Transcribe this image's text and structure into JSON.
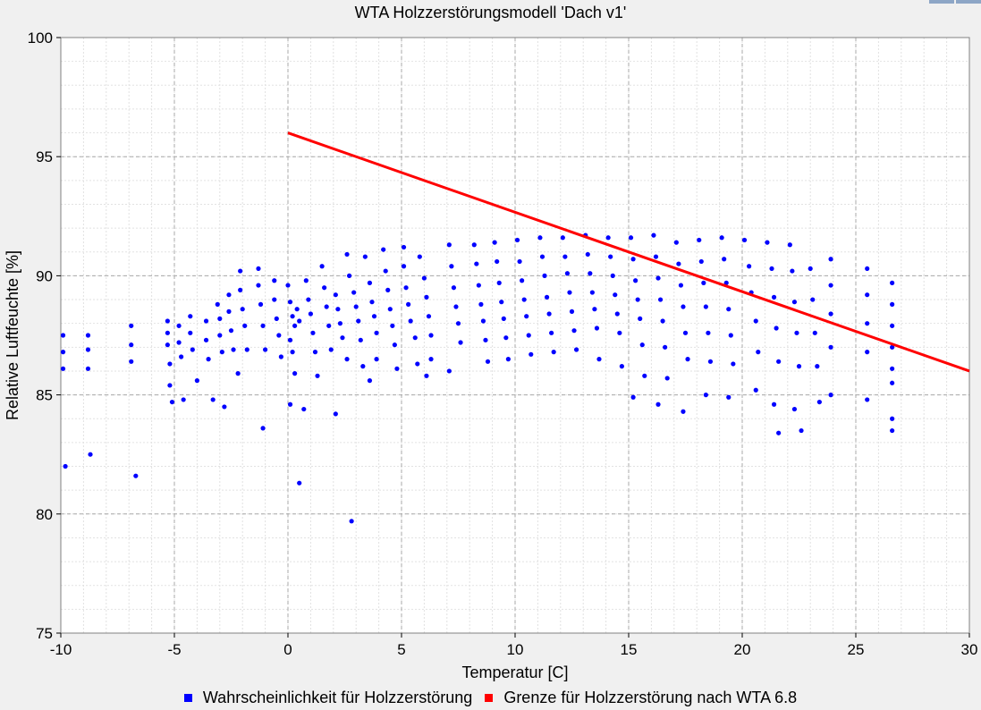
{
  "chart_data": {
    "type": "scatter",
    "title": "WTA Holzzerstörungsmodell 'Dach v1'",
    "xlabel": "Temperatur [C]",
    "ylabel": "Relative Luftfeuchte [%]",
    "xlim": [
      -10,
      30
    ],
    "ylim": [
      75,
      100
    ],
    "xticks": [
      -10,
      -5,
      0,
      5,
      10,
      15,
      20,
      25,
      30
    ],
    "yticks": [
      75,
      80,
      85,
      90,
      95,
      100
    ],
    "grid": true,
    "legend_position": "bottom",
    "series": [
      {
        "name": "Wahrscheinlichkeit für Holzzerstörung",
        "type": "scatter",
        "color": "#0000ff",
        "points": [
          [
            -9.9,
            87.5
          ],
          [
            -9.9,
            86.8
          ],
          [
            -9.9,
            86.1
          ],
          [
            -9.8,
            82.0
          ],
          [
            -8.8,
            87.5
          ],
          [
            -8.8,
            86.9
          ],
          [
            -8.8,
            86.1
          ],
          [
            -8.7,
            82.5
          ],
          [
            -6.9,
            87.9
          ],
          [
            -6.9,
            87.1
          ],
          [
            -6.9,
            86.4
          ],
          [
            -6.7,
            81.6
          ],
          [
            -5.3,
            88.1
          ],
          [
            -5.3,
            87.6
          ],
          [
            -5.3,
            87.1
          ],
          [
            -5.2,
            86.3
          ],
          [
            -5.2,
            85.4
          ],
          [
            -5.1,
            84.7
          ],
          [
            -4.8,
            87.9
          ],
          [
            -4.8,
            87.2
          ],
          [
            -4.7,
            86.6
          ],
          [
            -4.6,
            84.8
          ],
          [
            -4.3,
            88.3
          ],
          [
            -4.3,
            87.6
          ],
          [
            -4.2,
            86.9
          ],
          [
            -4.0,
            85.6
          ],
          [
            -3.6,
            88.1
          ],
          [
            -3.6,
            87.3
          ],
          [
            -3.5,
            86.5
          ],
          [
            -3.3,
            84.8
          ],
          [
            -3.1,
            88.8
          ],
          [
            -3.0,
            88.2
          ],
          [
            -3.0,
            87.5
          ],
          [
            -2.9,
            86.8
          ],
          [
            -2.8,
            84.5
          ],
          [
            -2.6,
            89.2
          ],
          [
            -2.6,
            88.5
          ],
          [
            -2.5,
            87.7
          ],
          [
            -2.4,
            86.9
          ],
          [
            -2.2,
            85.9
          ],
          [
            -2.1,
            90.2
          ],
          [
            -2.1,
            89.4
          ],
          [
            -2.0,
            88.6
          ],
          [
            -1.9,
            87.9
          ],
          [
            -1.8,
            86.9
          ],
          [
            -1.3,
            90.3
          ],
          [
            -1.3,
            89.6
          ],
          [
            -1.2,
            88.8
          ],
          [
            -1.1,
            87.9
          ],
          [
            -1.0,
            86.9
          ],
          [
            -1.1,
            83.6
          ],
          [
            -0.6,
            89.8
          ],
          [
            -0.6,
            89.0
          ],
          [
            -0.5,
            88.2
          ],
          [
            -0.4,
            87.5
          ],
          [
            -0.3,
            86.6
          ],
          [
            0.0,
            89.6
          ],
          [
            0.1,
            88.9
          ],
          [
            0.2,
            88.3
          ],
          [
            0.3,
            87.9
          ],
          [
            0.4,
            88.6
          ],
          [
            0.5,
            88.1
          ],
          [
            0.1,
            87.3
          ],
          [
            0.2,
            86.8
          ],
          [
            0.3,
            85.9
          ],
          [
            0.1,
            84.6
          ],
          [
            0.5,
            81.3
          ],
          [
            0.7,
            84.4
          ],
          [
            0.8,
            89.8
          ],
          [
            0.9,
            89.0
          ],
          [
            1.0,
            88.4
          ],
          [
            1.1,
            87.6
          ],
          [
            1.2,
            86.8
          ],
          [
            1.3,
            85.8
          ],
          [
            1.5,
            90.4
          ],
          [
            1.6,
            89.5
          ],
          [
            1.7,
            88.7
          ],
          [
            1.8,
            87.9
          ],
          [
            1.9,
            86.9
          ],
          [
            2.1,
            84.2
          ],
          [
            2.1,
            89.2
          ],
          [
            2.2,
            88.6
          ],
          [
            2.3,
            88.0
          ],
          [
            2.4,
            87.4
          ],
          [
            2.6,
            86.5
          ],
          [
            2.8,
            79.7
          ],
          [
            2.6,
            90.9
          ],
          [
            2.7,
            90.0
          ],
          [
            2.9,
            89.3
          ],
          [
            3.0,
            88.7
          ],
          [
            3.1,
            88.1
          ],
          [
            3.2,
            87.3
          ],
          [
            3.3,
            86.2
          ],
          [
            3.4,
            90.8
          ],
          [
            3.6,
            89.7
          ],
          [
            3.7,
            88.9
          ],
          [
            3.8,
            88.3
          ],
          [
            3.9,
            87.6
          ],
          [
            3.9,
            86.5
          ],
          [
            3.6,
            85.6
          ],
          [
            4.2,
            91.1
          ],
          [
            4.3,
            90.2
          ],
          [
            4.4,
            89.4
          ],
          [
            4.5,
            88.6
          ],
          [
            4.6,
            87.9
          ],
          [
            4.7,
            87.1
          ],
          [
            4.8,
            86.1
          ],
          [
            5.1,
            91.2
          ],
          [
            5.1,
            90.4
          ],
          [
            5.2,
            89.5
          ],
          [
            5.3,
            88.8
          ],
          [
            5.4,
            88.1
          ],
          [
            5.6,
            87.4
          ],
          [
            5.7,
            86.3
          ],
          [
            5.8,
            90.8
          ],
          [
            6.0,
            89.9
          ],
          [
            6.1,
            89.1
          ],
          [
            6.2,
            88.3
          ],
          [
            6.3,
            87.5
          ],
          [
            6.3,
            86.5
          ],
          [
            6.1,
            85.8
          ],
          [
            7.1,
            91.3
          ],
          [
            7.2,
            90.4
          ],
          [
            7.3,
            89.5
          ],
          [
            7.4,
            88.7
          ],
          [
            7.5,
            88.0
          ],
          [
            7.6,
            87.2
          ],
          [
            7.1,
            86.0
          ],
          [
            8.2,
            91.3
          ],
          [
            8.3,
            90.5
          ],
          [
            8.4,
            89.6
          ],
          [
            8.5,
            88.8
          ],
          [
            8.6,
            88.1
          ],
          [
            8.7,
            87.3
          ],
          [
            8.8,
            86.4
          ],
          [
            9.1,
            91.4
          ],
          [
            9.2,
            90.6
          ],
          [
            9.3,
            89.7
          ],
          [
            9.4,
            88.9
          ],
          [
            9.5,
            88.2
          ],
          [
            9.6,
            87.4
          ],
          [
            9.7,
            86.5
          ],
          [
            10.1,
            91.5
          ],
          [
            10.2,
            90.6
          ],
          [
            10.3,
            89.8
          ],
          [
            10.4,
            89.0
          ],
          [
            10.5,
            88.3
          ],
          [
            10.6,
            87.5
          ],
          [
            10.7,
            86.7
          ],
          [
            11.1,
            91.6
          ],
          [
            11.2,
            90.8
          ],
          [
            11.3,
            90.0
          ],
          [
            11.4,
            89.1
          ],
          [
            11.5,
            88.4
          ],
          [
            11.6,
            87.6
          ],
          [
            11.7,
            86.8
          ],
          [
            12.1,
            91.6
          ],
          [
            12.2,
            90.8
          ],
          [
            12.3,
            90.1
          ],
          [
            12.4,
            89.3
          ],
          [
            12.5,
            88.5
          ],
          [
            12.6,
            87.7
          ],
          [
            12.7,
            86.9
          ],
          [
            13.1,
            91.7
          ],
          [
            13.2,
            90.9
          ],
          [
            13.3,
            90.1
          ],
          [
            13.4,
            89.3
          ],
          [
            13.5,
            88.6
          ],
          [
            13.6,
            87.8
          ],
          [
            13.7,
            86.5
          ],
          [
            14.1,
            91.6
          ],
          [
            14.2,
            90.8
          ],
          [
            14.3,
            90.0
          ],
          [
            14.4,
            89.2
          ],
          [
            14.5,
            88.4
          ],
          [
            14.6,
            87.6
          ],
          [
            14.7,
            86.2
          ],
          [
            15.1,
            91.6
          ],
          [
            15.2,
            90.7
          ],
          [
            15.3,
            89.8
          ],
          [
            15.4,
            89.0
          ],
          [
            15.5,
            88.2
          ],
          [
            15.6,
            87.1
          ],
          [
            15.7,
            85.8
          ],
          [
            15.2,
            84.9
          ],
          [
            16.1,
            91.7
          ],
          [
            16.2,
            90.8
          ],
          [
            16.3,
            89.9
          ],
          [
            16.4,
            89.0
          ],
          [
            16.5,
            88.1
          ],
          [
            16.6,
            87.0
          ],
          [
            16.7,
            85.7
          ],
          [
            16.3,
            84.6
          ],
          [
            17.1,
            91.4
          ],
          [
            17.2,
            90.5
          ],
          [
            17.3,
            89.6
          ],
          [
            17.4,
            88.7
          ],
          [
            17.5,
            87.6
          ],
          [
            17.6,
            86.5
          ],
          [
            17.4,
            84.3
          ],
          [
            18.1,
            91.5
          ],
          [
            18.2,
            90.6
          ],
          [
            18.3,
            89.7
          ],
          [
            18.4,
            88.7
          ],
          [
            18.5,
            87.6
          ],
          [
            18.6,
            86.4
          ],
          [
            18.4,
            85.0
          ],
          [
            19.1,
            91.6
          ],
          [
            19.2,
            90.7
          ],
          [
            19.3,
            89.7
          ],
          [
            19.4,
            88.6
          ],
          [
            19.5,
            87.5
          ],
          [
            19.6,
            86.3
          ],
          [
            19.4,
            84.9
          ],
          [
            20.1,
            91.5
          ],
          [
            20.3,
            90.4
          ],
          [
            20.4,
            89.3
          ],
          [
            20.6,
            88.1
          ],
          [
            20.7,
            86.8
          ],
          [
            20.6,
            85.2
          ],
          [
            21.1,
            91.4
          ],
          [
            21.3,
            90.3
          ],
          [
            21.4,
            89.1
          ],
          [
            21.5,
            87.8
          ],
          [
            21.6,
            86.4
          ],
          [
            21.4,
            84.6
          ],
          [
            21.6,
            83.4
          ],
          [
            22.1,
            91.3
          ],
          [
            22.2,
            90.2
          ],
          [
            22.3,
            88.9
          ],
          [
            22.4,
            87.6
          ],
          [
            22.5,
            86.2
          ],
          [
            22.3,
            84.4
          ],
          [
            22.6,
            83.5
          ],
          [
            23.0,
            90.3
          ],
          [
            23.1,
            89.0
          ],
          [
            23.2,
            87.6
          ],
          [
            23.3,
            86.2
          ],
          [
            23.4,
            84.7
          ],
          [
            23.9,
            90.7
          ],
          [
            23.9,
            89.6
          ],
          [
            23.9,
            88.4
          ],
          [
            23.9,
            87.0
          ],
          [
            23.9,
            85.0
          ],
          [
            25.5,
            90.3
          ],
          [
            25.5,
            89.2
          ],
          [
            25.5,
            88.0
          ],
          [
            25.5,
            86.8
          ],
          [
            25.5,
            84.8
          ],
          [
            26.6,
            89.7
          ],
          [
            26.6,
            88.8
          ],
          [
            26.6,
            87.9
          ],
          [
            26.6,
            87.0
          ],
          [
            26.6,
            86.1
          ],
          [
            26.6,
            85.5
          ],
          [
            26.6,
            84.0
          ],
          [
            26.6,
            83.5
          ]
        ]
      },
      {
        "name": "Grenze für Holzzerstörung nach WTA 6.8",
        "type": "line",
        "color": "#ff0000",
        "points": [
          [
            0,
            96.0
          ],
          [
            30,
            86.0
          ]
        ]
      }
    ]
  }
}
